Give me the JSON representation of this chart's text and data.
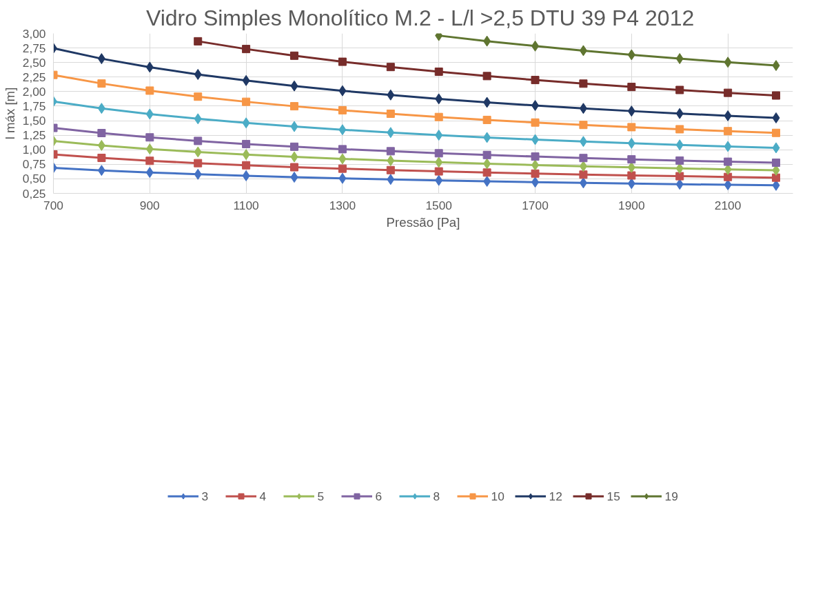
{
  "chart_data": {
    "type": "line",
    "title": "Vidro Simples Monolítico M.2 - L/l >2,5  DTU 39 P4 2012",
    "xlabel": "Pressão [Pa]",
    "ylabel": "l máx [m]",
    "x": [
      700,
      800,
      900,
      1000,
      1100,
      1200,
      1300,
      1400,
      1500,
      1600,
      1700,
      1800,
      1900,
      2000,
      2100,
      2200
    ],
    "series": [
      {
        "name": "3",
        "color": "#4472c4",
        "marker": "diamond",
        "values": [
          0.69,
          0.645,
          0.61,
          0.578,
          0.553,
          0.528,
          0.508,
          0.49,
          0.473,
          0.457,
          0.443,
          0.43,
          0.418,
          0.407,
          0.397,
          0.388
        ]
      },
      {
        "name": "4",
        "color": "#c0504d",
        "marker": "square",
        "values": [
          0.92,
          0.86,
          0.81,
          0.77,
          0.733,
          0.7,
          0.675,
          0.65,
          0.628,
          0.608,
          0.59,
          0.573,
          0.558,
          0.545,
          0.532,
          0.52
        ]
      },
      {
        "name": "5",
        "color": "#9bbb59",
        "marker": "diamond",
        "values": [
          1.15,
          1.075,
          1.013,
          0.962,
          0.917,
          0.877,
          0.843,
          0.813,
          0.785,
          0.76,
          0.737,
          0.716,
          0.697,
          0.68,
          0.662,
          0.648
        ]
      },
      {
        "name": "6",
        "color": "#8064a2",
        "marker": "square",
        "values": [
          1.375,
          1.287,
          1.213,
          1.152,
          1.098,
          1.052,
          1.01,
          0.975,
          0.94,
          0.91,
          0.883,
          0.858,
          0.835,
          0.814,
          0.794,
          0.777
        ]
      },
      {
        "name": "8",
        "color": "#4bacc6",
        "marker": "diamond",
        "values": [
          1.83,
          1.712,
          1.614,
          1.532,
          1.461,
          1.399,
          1.344,
          1.296,
          1.251,
          1.211,
          1.175,
          1.142,
          1.111,
          1.083,
          1.057,
          1.033
        ]
      },
      {
        "name": "10",
        "color": "#f79646",
        "marker": "square",
        "values": [
          2.287,
          2.139,
          2.017,
          1.913,
          1.825,
          1.748,
          1.679,
          1.619,
          1.563,
          1.513,
          1.468,
          1.427,
          1.389,
          1.353,
          1.32,
          1.29
        ]
      },
      {
        "name": "12",
        "color": "#1f3864",
        "marker": "diamond",
        "values": [
          2.745,
          2.566,
          2.42,
          2.295,
          2.19,
          2.097,
          2.014,
          1.942,
          1.875,
          1.815,
          1.761,
          1.711,
          1.665,
          1.623,
          1.584,
          1.548
        ]
      },
      {
        "name": "15",
        "color": "#772c2a",
        "marker": "square",
        "values": [
          null,
          null,
          null,
          2.865,
          2.732,
          2.617,
          2.513,
          2.423,
          2.342,
          2.267,
          2.199,
          2.137,
          2.08,
          2.028,
          1.979,
          1.933
        ]
      },
      {
        "name": "19",
        "color": "#5f7530",
        "marker": "diamond",
        "values": [
          null,
          null,
          null,
          null,
          null,
          null,
          null,
          null,
          2.963,
          2.868,
          2.783,
          2.705,
          2.633,
          2.567,
          2.505,
          2.448
        ]
      }
    ],
    "xlim": [
      700,
      2235
    ],
    "ylim": [
      0.25,
      3.0
    ],
    "xticks": [
      700,
      900,
      1100,
      1300,
      1500,
      1700,
      1900,
      2100
    ],
    "yticks": [
      {
        "value": 0.25,
        "label": "0,25"
      },
      {
        "value": 0.5,
        "label": "0,50"
      },
      {
        "value": 0.75,
        "label": "0,75"
      },
      {
        "value": 1.0,
        "label": "1,00"
      },
      {
        "value": 1.25,
        "label": "1,25"
      },
      {
        "value": 1.5,
        "label": "1,50"
      },
      {
        "value": 1.75,
        "label": "1,75"
      },
      {
        "value": 2.0,
        "label": "2,00"
      },
      {
        "value": 2.25,
        "label": "2,25"
      },
      {
        "value": 2.5,
        "label": "2,50"
      },
      {
        "value": 2.75,
        "label": "2,75"
      },
      {
        "value": 3.0,
        "label": "3,00"
      }
    ],
    "grid": true,
    "legend": "bottom",
    "line_style": "solid"
  }
}
